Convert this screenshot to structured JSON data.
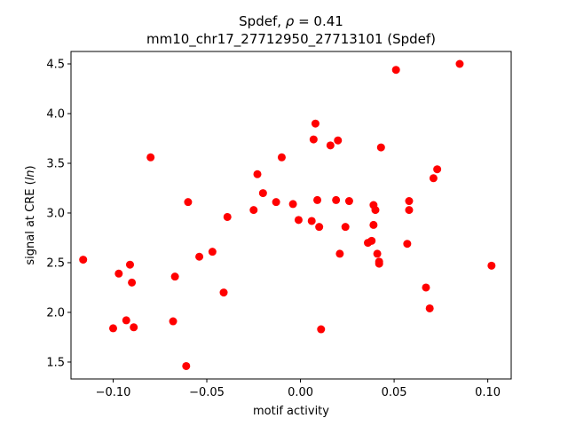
{
  "chart_data": {
    "type": "scatter",
    "title_line1": "Spdef, ",
    "title_rho_symbol": "ρ",
    "title_rho_value": " = 0.41",
    "title_line2": "mm10_chr17_27712950_27713101 (Spdef)",
    "xlabel": "motif activity",
    "ylabel_prefix": "signal at CRE (",
    "ylabel_italic": "ln",
    "ylabel_suffix": ")",
    "xlim": [
      -0.1225,
      0.1125
    ],
    "ylim": [
      1.33,
      4.625
    ],
    "xticks": [
      -0.1,
      -0.05,
      0.0,
      0.05,
      0.1
    ],
    "xtick_labels": [
      "−0.10",
      "−0.05",
      "0.00",
      "0.05",
      "0.10"
    ],
    "yticks": [
      1.5,
      2.0,
      2.5,
      3.0,
      3.5,
      4.0,
      4.5
    ],
    "ytick_labels": [
      "1.5",
      "2.0",
      "2.5",
      "3.0",
      "3.5",
      "4.0",
      "4.5"
    ],
    "grid": false,
    "marker_color": "#ff0000",
    "points": [
      {
        "x": -0.116,
        "y": 2.53
      },
      {
        "x": -0.1,
        "y": 1.84
      },
      {
        "x": -0.097,
        "y": 2.39
      },
      {
        "x": -0.093,
        "y": 1.92
      },
      {
        "x": -0.091,
        "y": 2.48
      },
      {
        "x": -0.09,
        "y": 2.3
      },
      {
        "x": -0.089,
        "y": 1.85
      },
      {
        "x": -0.08,
        "y": 3.56
      },
      {
        "x": -0.068,
        "y": 1.91
      },
      {
        "x": -0.067,
        "y": 2.36
      },
      {
        "x": -0.061,
        "y": 1.46
      },
      {
        "x": -0.06,
        "y": 3.11
      },
      {
        "x": -0.054,
        "y": 2.56
      },
      {
        "x": -0.047,
        "y": 2.61
      },
      {
        "x": -0.041,
        "y": 2.2
      },
      {
        "x": -0.039,
        "y": 2.96
      },
      {
        "x": -0.025,
        "y": 3.03
      },
      {
        "x": -0.023,
        "y": 3.39
      },
      {
        "x": -0.02,
        "y": 3.2
      },
      {
        "x": -0.013,
        "y": 3.11
      },
      {
        "x": -0.01,
        "y": 3.56
      },
      {
        "x": -0.004,
        "y": 3.09
      },
      {
        "x": -0.001,
        "y": 2.93
      },
      {
        "x": 0.006,
        "y": 2.92
      },
      {
        "x": 0.007,
        "y": 3.74
      },
      {
        "x": 0.008,
        "y": 3.9
      },
      {
        "x": 0.009,
        "y": 3.13
      },
      {
        "x": 0.01,
        "y": 2.86
      },
      {
        "x": 0.011,
        "y": 1.83
      },
      {
        "x": 0.016,
        "y": 3.68
      },
      {
        "x": 0.019,
        "y": 3.13
      },
      {
        "x": 0.02,
        "y": 3.73
      },
      {
        "x": 0.021,
        "y": 2.59
      },
      {
        "x": 0.024,
        "y": 2.86
      },
      {
        "x": 0.026,
        "y": 3.12
      },
      {
        "x": 0.036,
        "y": 2.7
      },
      {
        "x": 0.038,
        "y": 2.72
      },
      {
        "x": 0.039,
        "y": 3.08
      },
      {
        "x": 0.039,
        "y": 2.88
      },
      {
        "x": 0.04,
        "y": 3.03
      },
      {
        "x": 0.041,
        "y": 2.59
      },
      {
        "x": 0.042,
        "y": 2.49
      },
      {
        "x": 0.042,
        "y": 2.51
      },
      {
        "x": 0.043,
        "y": 3.66
      },
      {
        "x": 0.051,
        "y": 4.44
      },
      {
        "x": 0.057,
        "y": 2.69
      },
      {
        "x": 0.058,
        "y": 3.03
      },
      {
        "x": 0.058,
        "y": 3.12
      },
      {
        "x": 0.067,
        "y": 2.25
      },
      {
        "x": 0.069,
        "y": 2.04
      },
      {
        "x": 0.071,
        "y": 3.35
      },
      {
        "x": 0.073,
        "y": 3.44
      },
      {
        "x": 0.085,
        "y": 4.5
      },
      {
        "x": 0.102,
        "y": 2.47
      }
    ]
  }
}
